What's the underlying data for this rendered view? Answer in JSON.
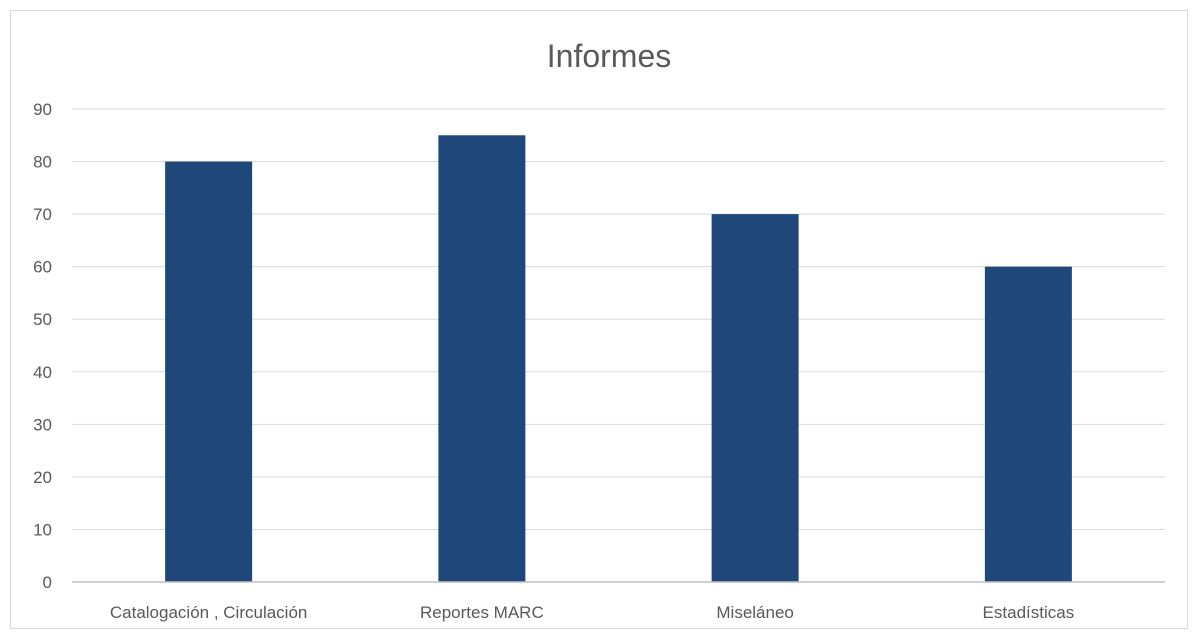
{
  "chart_data": {
    "type": "bar",
    "title": "Informes",
    "categories": [
      "Catalogación , Circulación",
      "Reportes MARC",
      "Miseláneo",
      "Estadísticas"
    ],
    "values": [
      80,
      85,
      70,
      60
    ],
    "ylim": [
      0,
      90
    ],
    "yticks": [
      0,
      10,
      20,
      30,
      40,
      50,
      60,
      70,
      80,
      90
    ],
    "xlabel": "",
    "ylabel": "",
    "grid": true,
    "legend": "none",
    "colors": {
      "bar": "#1f4779",
      "grid": "#d9d9d9",
      "axis": "#bfbfbf",
      "text": "#595959"
    }
  }
}
